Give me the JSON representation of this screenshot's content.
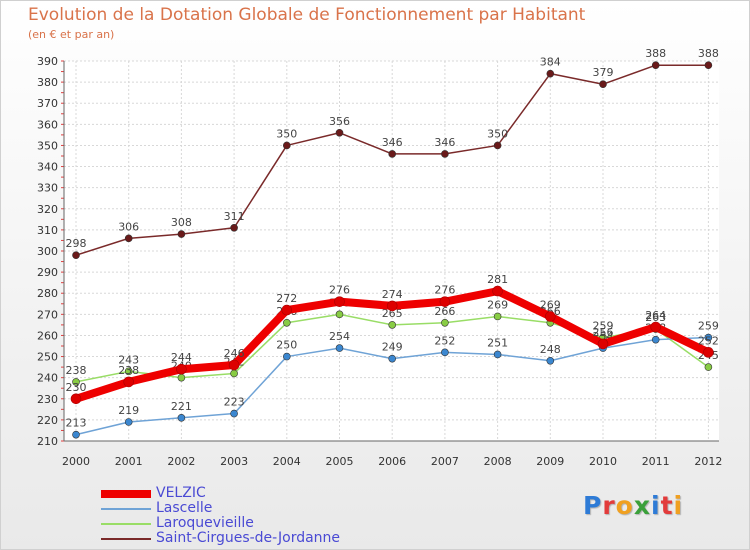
{
  "header": {
    "title": "Evolution de la Dotation Globale de Fonctionnement par Habitant",
    "subtitle": "(en € et par an)"
  },
  "logo": {
    "text": "Proxiti",
    "letter_colors": [
      "#2e7bd6",
      "#e23b3b",
      "#f0a020",
      "#3aa03a",
      "#2e7bd6",
      "#e23b3b",
      "#f0a020"
    ]
  },
  "chart_data": {
    "type": "line",
    "x": [
      "2000",
      "2001",
      "2002",
      "2003",
      "2004",
      "2005",
      "2006",
      "2007",
      "2008",
      "2009",
      "2010",
      "2011",
      "2012"
    ],
    "ylim": [
      210,
      390
    ],
    "yticks": [
      210,
      220,
      230,
      240,
      250,
      260,
      270,
      280,
      290,
      300,
      310,
      320,
      330,
      340,
      350,
      360,
      370,
      380,
      390
    ],
    "grid": true,
    "legend_position": "bottom-left",
    "series": [
      {
        "name": "Saint-Cirgues-de-Jordanne",
        "color": "#7a2a2a",
        "dot": "#6a1a1a",
        "values": [
          298,
          306,
          308,
          311,
          350,
          356,
          346,
          346,
          350,
          384,
          379,
          388,
          388
        ]
      },
      {
        "name": "Laroquevieille",
        "color": "#99dd66",
        "dot": "#88cc44",
        "values": [
          238,
          243,
          240,
          242,
          266,
          270,
          265,
          266,
          269,
          266,
          259,
          263,
          245
        ]
      },
      {
        "name": "Lascelle",
        "color": "#6fa3d6",
        "dot": "#3b87d0",
        "values": [
          213,
          219,
          221,
          223,
          250,
          254,
          249,
          252,
          251,
          248,
          254,
          258,
          259
        ]
      },
      {
        "name": "VELZIC",
        "color": "#ee0000",
        "dot": "#dd0000",
        "values": [
          230,
          238,
          244,
          246,
          272,
          276,
          274,
          276,
          281,
          269,
          256,
          264,
          252
        ]
      }
    ]
  }
}
